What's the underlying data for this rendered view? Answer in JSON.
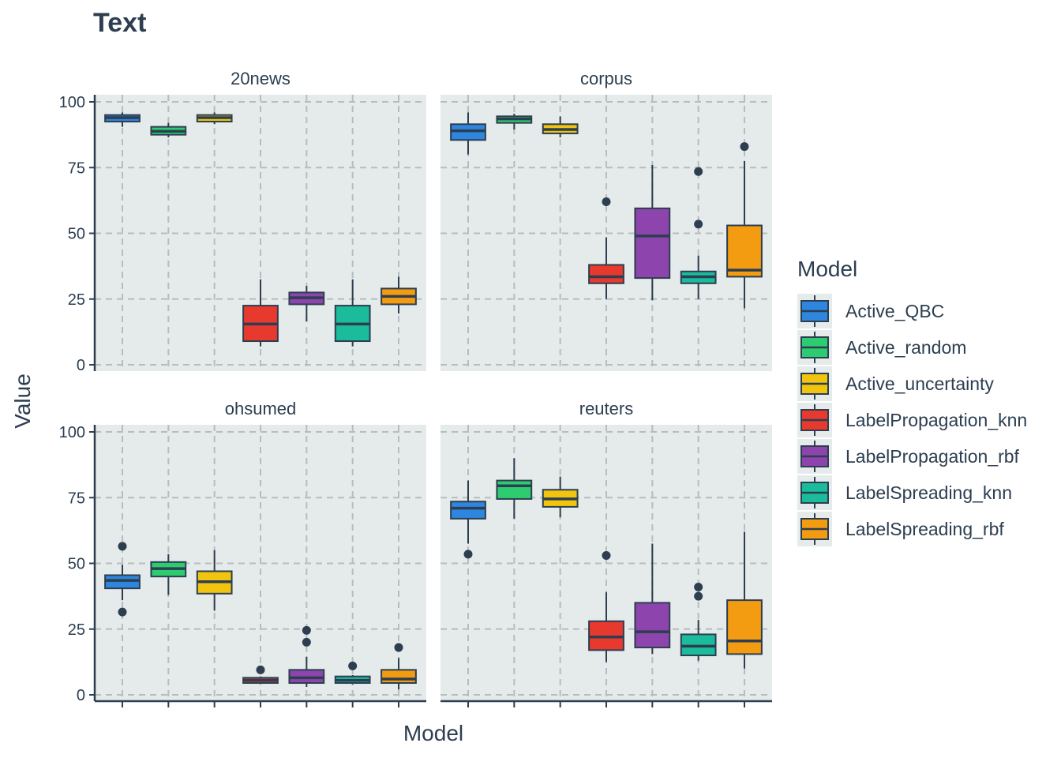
{
  "chart_data": {
    "type": "boxplot",
    "title": "Text",
    "xlabel": "Model",
    "ylabel": "Value",
    "ylim": [
      0,
      100
    ],
    "yticks": [
      0,
      25,
      50,
      75,
      100
    ],
    "grid": true,
    "legend": {
      "title": "Model",
      "placement": "right",
      "entries": [
        {
          "name": "Active_QBC",
          "color": "#2e86de"
        },
        {
          "name": "Active_random",
          "color": "#2ecc71"
        },
        {
          "name": "Active_uncertainty",
          "color": "#f1c40f"
        },
        {
          "name": "LabelPropagation_knn",
          "color": "#e8392f"
        },
        {
          "name": "LabelPropagation_rbf",
          "color": "#8e44ad"
        },
        {
          "name": "LabelSpreading_knn",
          "color": "#1abc9c"
        },
        {
          "name": "LabelSpreading_rbf",
          "color": "#f39c12"
        }
      ]
    },
    "facets": [
      {
        "name": "20news",
        "boxes": [
          {
            "model": "Active_QBC",
            "low": 90.5,
            "q1": 92.5,
            "median": 94,
            "q3": 95,
            "high": 96,
            "outliers": []
          },
          {
            "model": "Active_random",
            "low": 86.5,
            "q1": 87.5,
            "median": 88.8,
            "q3": 90.5,
            "high": 92,
            "outliers": []
          },
          {
            "model": "Active_uncertainty",
            "low": 91.5,
            "q1": 92.5,
            "median": 94,
            "q3": 95,
            "high": 96,
            "outliers": []
          },
          {
            "model": "LabelPropagation_knn",
            "low": 7,
            "q1": 9,
            "median": 15.5,
            "q3": 22.5,
            "high": 32.5,
            "outliers": []
          },
          {
            "model": "LabelPropagation_rbf",
            "low": 16.5,
            "q1": 23,
            "median": 25.5,
            "q3": 27.5,
            "high": 30,
            "outliers": []
          },
          {
            "model": "LabelSpreading_knn",
            "low": 7,
            "q1": 9,
            "median": 15.5,
            "q3": 22.5,
            "high": 32.5,
            "outliers": []
          },
          {
            "model": "LabelSpreading_rbf",
            "low": 19.5,
            "q1": 23,
            "median": 26,
            "q3": 29,
            "high": 33.5,
            "outliers": []
          }
        ]
      },
      {
        "name": "corpus",
        "boxes": [
          {
            "model": "Active_QBC",
            "low": 80,
            "q1": 85.5,
            "median": 89,
            "q3": 91.5,
            "high": 96,
            "outliers": []
          },
          {
            "model": "Active_random",
            "low": 89.5,
            "q1": 92,
            "median": 93.5,
            "q3": 94.5,
            "high": 95.5,
            "outliers": []
          },
          {
            "model": "Active_uncertainty",
            "low": 86.5,
            "q1": 88,
            "median": 89.5,
            "q3": 91.5,
            "high": 94.5,
            "outliers": []
          },
          {
            "model": "LabelPropagation_knn",
            "low": 25,
            "q1": 31,
            "median": 33.5,
            "q3": 38,
            "high": 48.5,
            "outliers": [
              62
            ]
          },
          {
            "model": "LabelPropagation_rbf",
            "low": 24.5,
            "q1": 33,
            "median": 49,
            "q3": 59.5,
            "high": 76,
            "outliers": []
          },
          {
            "model": "LabelSpreading_knn",
            "low": 25,
            "q1": 31,
            "median": 33.5,
            "q3": 35.5,
            "high": 41.5,
            "outliers": [
              53.5,
              73.5
            ]
          },
          {
            "model": "LabelSpreading_rbf",
            "low": 21.5,
            "q1": 33.5,
            "median": 36,
            "q3": 53,
            "high": 77.5,
            "outliers": [
              83
            ]
          }
        ]
      },
      {
        "name": "ohsumed",
        "boxes": [
          {
            "model": "Active_QBC",
            "low": 36,
            "q1": 40.5,
            "median": 43.5,
            "q3": 45.5,
            "high": 49.5,
            "outliers": [
              31.5,
              56.5
            ]
          },
          {
            "model": "Active_random",
            "low": 38,
            "q1": 45,
            "median": 48,
            "q3": 50.5,
            "high": 53.5,
            "outliers": []
          },
          {
            "model": "Active_uncertainty",
            "low": 32,
            "q1": 38.5,
            "median": 43,
            "q3": 47,
            "high": 55,
            "outliers": []
          },
          {
            "model": "LabelPropagation_knn",
            "low": 4.5,
            "q1": 4.5,
            "median": 5.5,
            "q3": 6.5,
            "high": 7,
            "outliers": [
              9.5
            ]
          },
          {
            "model": "LabelPropagation_rbf",
            "low": 3,
            "q1": 4.5,
            "median": 6.5,
            "q3": 9.5,
            "high": 14.5,
            "outliers": [
              20,
              24.5
            ]
          },
          {
            "model": "LabelSpreading_knn",
            "low": 4,
            "q1": 4.5,
            "median": 5.5,
            "q3": 7,
            "high": 7.5,
            "outliers": [
              11
            ]
          },
          {
            "model": "LabelSpreading_rbf",
            "low": 2,
            "q1": 4.5,
            "median": 6,
            "q3": 9.5,
            "high": 14,
            "outliers": [
              18
            ]
          }
        ]
      },
      {
        "name": "reuters",
        "boxes": [
          {
            "model": "Active_QBC",
            "low": 57.5,
            "q1": 67,
            "median": 71,
            "q3": 73.5,
            "high": 81.5,
            "outliers": [
              53.5
            ]
          },
          {
            "model": "Active_random",
            "low": 67,
            "q1": 74.5,
            "median": 79.5,
            "q3": 81.5,
            "high": 90,
            "outliers": []
          },
          {
            "model": "Active_uncertainty",
            "low": 67.5,
            "q1": 71.5,
            "median": 74.5,
            "q3": 78,
            "high": 83,
            "outliers": []
          },
          {
            "model": "LabelPropagation_knn",
            "low": 12.5,
            "q1": 17,
            "median": 22,
            "q3": 28,
            "high": 39,
            "outliers": [
              53
            ]
          },
          {
            "model": "LabelPropagation_rbf",
            "low": 15.5,
            "q1": 18,
            "median": 24,
            "q3": 35,
            "high": 57.5,
            "outliers": []
          },
          {
            "model": "LabelSpreading_knn",
            "low": 13,
            "q1": 15,
            "median": 18.5,
            "q3": 23,
            "high": 28.5,
            "outliers": [
              37.5,
              41
            ]
          },
          {
            "model": "LabelSpreading_rbf",
            "low": 10,
            "q1": 15.5,
            "median": 20.5,
            "q3": 36,
            "high": 62,
            "outliers": []
          }
        ]
      }
    ]
  },
  "style": {
    "panel_bg": "#e5eaea",
    "grid_color": "#b8bcbc",
    "line_color": "#2c3e50",
    "text_color": "#2c3e50"
  }
}
